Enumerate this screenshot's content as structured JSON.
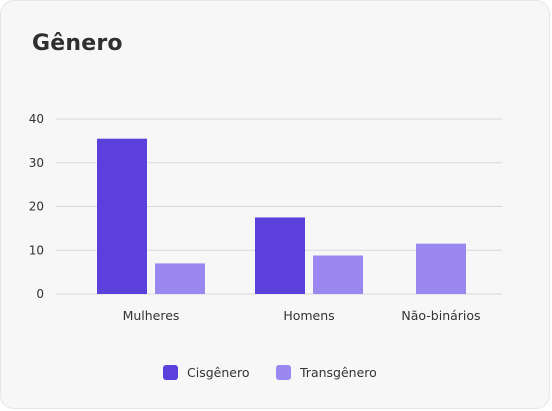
{
  "colors": {
    "cisgenero": "#5b40dc",
    "transgenero": "#9b87f0",
    "grid": "#d9d9d9",
    "text": "#333333"
  },
  "chart_data": {
    "type": "bar",
    "title": "Gênero",
    "categories": [
      "Mulheres",
      "Homens",
      "Não-binários"
    ],
    "series": [
      {
        "name": "Cisgênero",
        "values": [
          35.5,
          17.5,
          null
        ]
      },
      {
        "name": "Transgênero",
        "values": [
          7,
          8.8,
          11.5
        ]
      }
    ],
    "yticks": [
      0,
      10,
      20,
      30,
      40
    ],
    "ylim": [
      0,
      40
    ],
    "xlabel": "",
    "ylabel": "",
    "grid": true,
    "legend_position": "bottom"
  }
}
